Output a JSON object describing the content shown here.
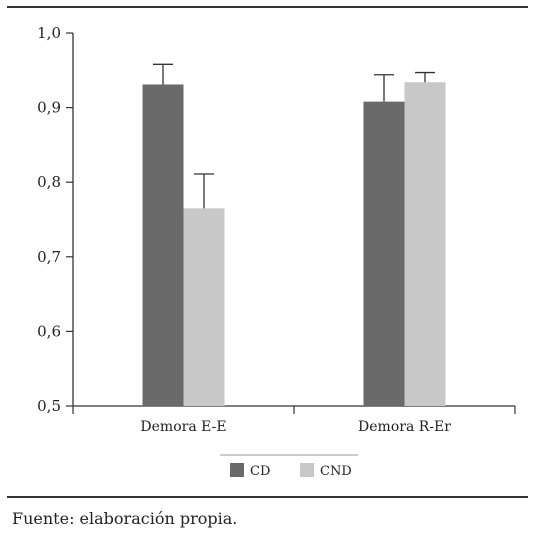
{
  "chart_data": {
    "type": "bar",
    "categories": [
      "Demora E-E",
      "Demora R-Er"
    ],
    "series": [
      {
        "name": "CD",
        "color": "#6a6a6a",
        "values": [
          0.931,
          0.908
        ],
        "error_upper": [
          0.958,
          0.944
        ]
      },
      {
        "name": "CND",
        "color": "#c8c8c8",
        "values": [
          0.765,
          0.934
        ],
        "error_upper": [
          0.811,
          0.947
        ]
      }
    ],
    "ylim": [
      0.5,
      1.0
    ],
    "yticks": [
      "0,5",
      "0,6",
      "0,7",
      "0,8",
      "0,9",
      "1,0"
    ],
    "ytick_values": [
      0.5,
      0.6,
      0.7,
      0.8,
      0.9,
      1.0
    ],
    "grid": false,
    "legend_position": "bottom-center"
  },
  "source_note": "Fuente: elaboración propia."
}
